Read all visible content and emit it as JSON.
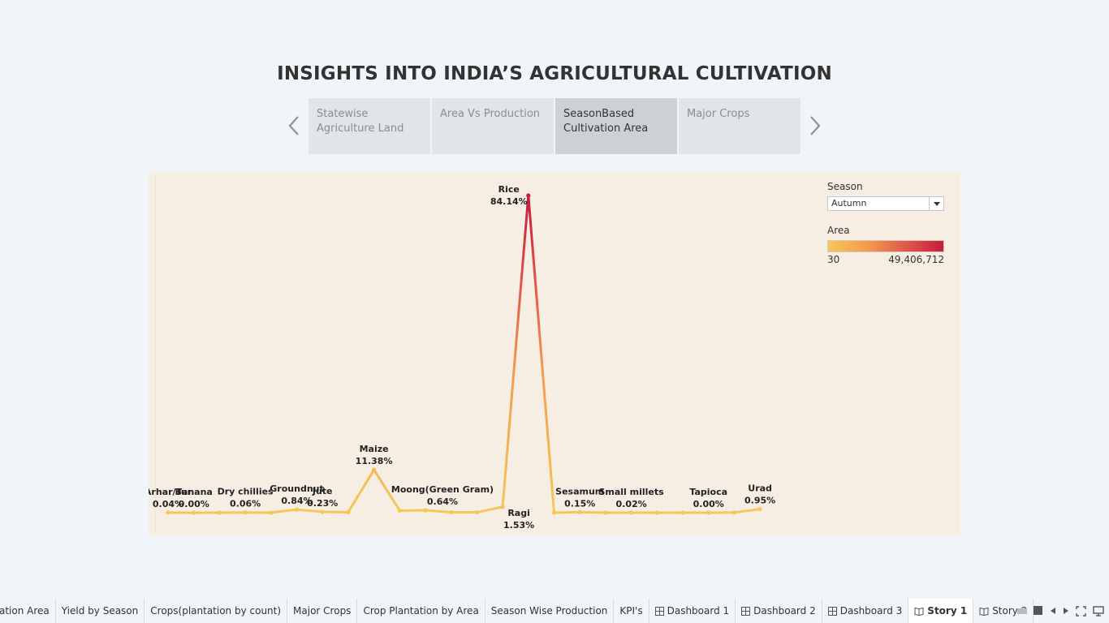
{
  "story": {
    "title": "INSIGHTS INTO INDIA’S AGRICULTURAL CULTIVATION",
    "points": [
      {
        "label": "Statewise Agriculture Land",
        "active": false
      },
      {
        "label": "Area Vs Production",
        "active": false
      },
      {
        "label": "SeasonBased Cultivation Area",
        "active": true
      },
      {
        "label": "Major Crops",
        "active": false
      }
    ]
  },
  "legend": {
    "season_title": "Season",
    "season_value": "Autumn",
    "area_title": "Area",
    "area_min": "30",
    "area_max": "49,406,712",
    "colors": {
      "low": "#f5c75a",
      "mid": "#f39a4e",
      "high": "#c41c3c"
    }
  },
  "chart_data": {
    "type": "line",
    "color_field": "Area",
    "points": [
      {
        "crop": "Arhar/Tur",
        "pct": 0.04,
        "label": "0.04%"
      },
      {
        "crop": "Banana",
        "pct": 0.0,
        "label": "0.00%"
      },
      {
        "crop": "",
        "pct": 0.0
      },
      {
        "crop": "Dry chillies",
        "pct": 0.06,
        "label": "0.06%"
      },
      {
        "crop": "",
        "pct": 0.0
      },
      {
        "crop": "Groundnut",
        "pct": 0.84,
        "label": "0.84%"
      },
      {
        "crop": "Jute",
        "pct": 0.23,
        "label": "0.23%"
      },
      {
        "crop": "",
        "pct": 0.1
      },
      {
        "crop": "Maize",
        "pct": 11.38,
        "label": "11.38%"
      },
      {
        "crop": "",
        "pct": 0.55
      },
      {
        "crop": "Moong(Green Gram)",
        "pct": 0.64,
        "label": "0.64%"
      },
      {
        "crop": "",
        "pct": 0.1
      },
      {
        "crop": "",
        "pct": 0.1
      },
      {
        "crop": "Ragi",
        "pct": 1.53,
        "label": "1.53%"
      },
      {
        "crop": "Rice",
        "pct": 84.14,
        "label": "84.14%"
      },
      {
        "crop": "",
        "pct": 0.0
      },
      {
        "crop": "Sesamum",
        "pct": 0.15,
        "label": "0.15%"
      },
      {
        "crop": "",
        "pct": 0.0
      },
      {
        "crop": "Small millets",
        "pct": 0.02,
        "label": "0.02%"
      },
      {
        "crop": "",
        "pct": 0.0
      },
      {
        "crop": "",
        "pct": 0.0
      },
      {
        "crop": "Tapioca",
        "pct": 0.0,
        "label": "0.00%"
      },
      {
        "crop": "",
        "pct": 0.05
      },
      {
        "crop": "Urad",
        "pct": 0.95,
        "label": "0.95%"
      }
    ]
  },
  "tabs": [
    {
      "label": "ation Area",
      "icon": ""
    },
    {
      "label": "Yield by Season",
      "icon": ""
    },
    {
      "label": "Crops(plantation by count)",
      "icon": ""
    },
    {
      "label": "Major Crops",
      "icon": ""
    },
    {
      "label": "Crop Plantation by Area",
      "icon": ""
    },
    {
      "label": "Season Wise Production",
      "icon": ""
    },
    {
      "label": "KPI's",
      "icon": ""
    },
    {
      "label": "Dashboard 1",
      "icon": "dashboard-icon"
    },
    {
      "label": "Dashboard 2",
      "icon": "dashboard-icon"
    },
    {
      "label": "Dashboard 3",
      "icon": "dashboard-icon"
    },
    {
      "label": "Story 1",
      "icon": "story-icon",
      "active": true
    },
    {
      "label": "Story 2",
      "icon": "story-icon"
    }
  ]
}
